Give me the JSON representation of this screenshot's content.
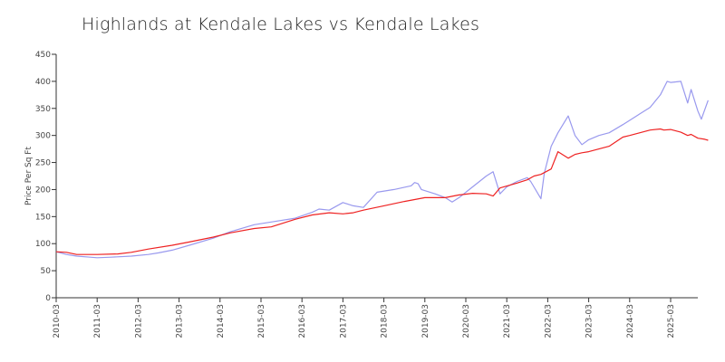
{
  "chart_data": {
    "type": "line",
    "title": "Highlands at Kendale Lakes vs Kendale Lakes",
    "xlabel": "",
    "ylabel": "Price Per Sq Ft",
    "xlim": [
      "2010-03",
      "2025-09"
    ],
    "ylim": [
      0,
      450
    ],
    "yticks": [
      0,
      50,
      100,
      150,
      200,
      250,
      300,
      350,
      400,
      450
    ],
    "xticks": [
      "2010-03",
      "2011-03",
      "2012-03",
      "2013-03",
      "2014-03",
      "2015-03",
      "2016-03",
      "2017-03",
      "2018-03",
      "2019-03",
      "2020-03",
      "2021-03",
      "2022-03",
      "2023-03",
      "2024-03",
      "2025-03"
    ],
    "grid": false,
    "legend": "none",
    "series": [
      {
        "color": "#9999ee",
        "points": [
          [
            "2010-03",
            85
          ],
          [
            "2010-06",
            80
          ],
          [
            "2010-09",
            77
          ],
          [
            "2011-01",
            75
          ],
          [
            "2011-03",
            74
          ],
          [
            "2011-07",
            75
          ],
          [
            "2012-01",
            77
          ],
          [
            "2012-06",
            80
          ],
          [
            "2012-09",
            83
          ],
          [
            "2013-01",
            88
          ],
          [
            "2013-06",
            97
          ],
          [
            "2014-01",
            110
          ],
          [
            "2014-06",
            122
          ],
          [
            "2015-01",
            135
          ],
          [
            "2015-06",
            140
          ],
          [
            "2016-01",
            147
          ],
          [
            "2016-06",
            158
          ],
          [
            "2016-08",
            164
          ],
          [
            "2016-11",
            162
          ],
          [
            "2017-03",
            176
          ],
          [
            "2017-06",
            170
          ],
          [
            "2017-09",
            167
          ],
          [
            "2018-01",
            195
          ],
          [
            "2018-06",
            200
          ],
          [
            "2018-11",
            207
          ],
          [
            "2018-12",
            213
          ],
          [
            "2019-01",
            211
          ],
          [
            "2019-02",
            200
          ],
          [
            "2019-06",
            192
          ],
          [
            "2019-09",
            185
          ],
          [
            "2019-11",
            177
          ],
          [
            "2020-01",
            185
          ],
          [
            "2020-05",
            205
          ],
          [
            "2020-09",
            225
          ],
          [
            "2020-11",
            233
          ],
          [
            "2021-01",
            192
          ],
          [
            "2021-03",
            205
          ],
          [
            "2021-06",
            215
          ],
          [
            "2021-09",
            222
          ],
          [
            "2021-10",
            215
          ],
          [
            "2022-01",
            183
          ],
          [
            "2022-02",
            230
          ],
          [
            "2022-04",
            280
          ],
          [
            "2022-06",
            305
          ],
          [
            "2022-09",
            336
          ],
          [
            "2022-11",
            300
          ],
          [
            "2023-01",
            283
          ],
          [
            "2023-03",
            292
          ],
          [
            "2023-06",
            300
          ],
          [
            "2023-09",
            305
          ],
          [
            "2024-01",
            320
          ],
          [
            "2024-06",
            340
          ],
          [
            "2024-09",
            352
          ],
          [
            "2024-12",
            375
          ],
          [
            "2025-02",
            400
          ],
          [
            "2025-03",
            398
          ],
          [
            "2025-06",
            400
          ],
          [
            "2025-08",
            360
          ],
          [
            "2025-09",
            385
          ],
          [
            "2025-11",
            345
          ],
          [
            "2025-12",
            330
          ],
          [
            "2026-02",
            365
          ]
        ]
      },
      {
        "color": "#ee2222",
        "points": [
          [
            "2010-03",
            85
          ],
          [
            "2010-06",
            84
          ],
          [
            "2010-09",
            80
          ],
          [
            "2011-03",
            80
          ],
          [
            "2011-09",
            81
          ],
          [
            "2012-01",
            84
          ],
          [
            "2012-06",
            90
          ],
          [
            "2013-01",
            97
          ],
          [
            "2013-06",
            103
          ],
          [
            "2014-01",
            112
          ],
          [
            "2014-06",
            120
          ],
          [
            "2015-01",
            128
          ],
          [
            "2015-06",
            131
          ],
          [
            "2016-01",
            145
          ],
          [
            "2016-06",
            153
          ],
          [
            "2016-11",
            157
          ],
          [
            "2017-03",
            155
          ],
          [
            "2017-06",
            157
          ],
          [
            "2017-09",
            162
          ],
          [
            "2018-03",
            170
          ],
          [
            "2018-09",
            178
          ],
          [
            "2019-03",
            185
          ],
          [
            "2019-06",
            185
          ],
          [
            "2019-09",
            185
          ],
          [
            "2020-01",
            190
          ],
          [
            "2020-05",
            193
          ],
          [
            "2020-09",
            192
          ],
          [
            "2020-11",
            188
          ],
          [
            "2021-01",
            203
          ],
          [
            "2021-06",
            212
          ],
          [
            "2021-09",
            218
          ],
          [
            "2021-11",
            225
          ],
          [
            "2022-01",
            228
          ],
          [
            "2022-04",
            238
          ],
          [
            "2022-06",
            270
          ],
          [
            "2022-09",
            258
          ],
          [
            "2022-11",
            265
          ],
          [
            "2023-01",
            268
          ],
          [
            "2023-03",
            270
          ],
          [
            "2023-06",
            275
          ],
          [
            "2023-09",
            280
          ],
          [
            "2024-01",
            297
          ],
          [
            "2024-03",
            300
          ],
          [
            "2024-06",
            305
          ],
          [
            "2024-09",
            310
          ],
          [
            "2024-12",
            312
          ],
          [
            "2025-01",
            310
          ],
          [
            "2025-03",
            311
          ],
          [
            "2025-06",
            306
          ],
          [
            "2025-08",
            300
          ],
          [
            "2025-09",
            302
          ],
          [
            "2025-11",
            295
          ],
          [
            "2026-01",
            293
          ],
          [
            "2026-02",
            291
          ]
        ]
      }
    ]
  }
}
